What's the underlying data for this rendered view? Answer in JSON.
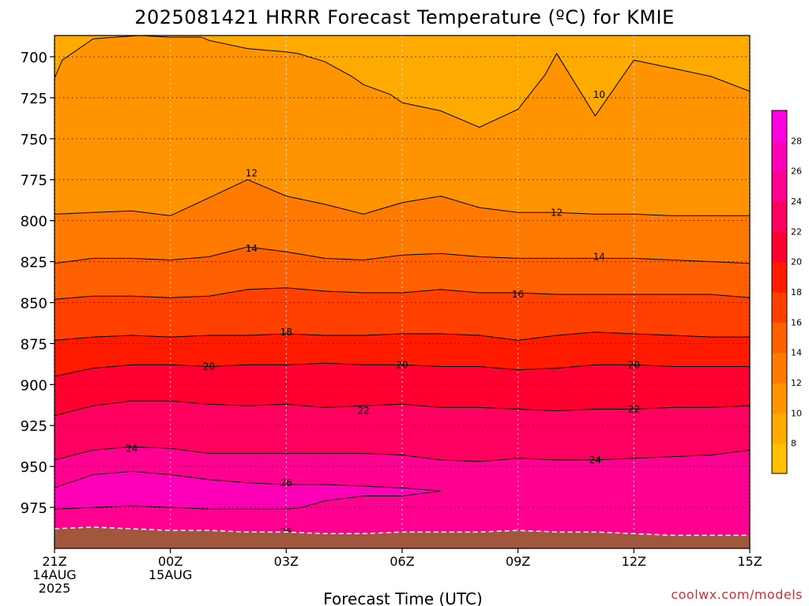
{
  "chart_data": {
    "type": "filled-contour",
    "title": "2025081421 HRRR Forecast Temperature (ºC) for KMIE",
    "xlabel": "Forecast Time (UTC)",
    "credit": "coolwx.com/models",
    "y_axis": {
      "reversed": true,
      "range": [
        1000,
        687
      ],
      "ticks": [
        700,
        725,
        750,
        775,
        800,
        825,
        850,
        875,
        900,
        925,
        950,
        975
      ]
    },
    "x_axis": {
      "range": [
        0,
        18
      ],
      "ticks": [
        {
          "x": 0,
          "lines": [
            "21Z",
            "14AUG",
            "2025"
          ]
        },
        {
          "x": 3,
          "lines": [
            "00Z",
            "15AUG"
          ]
        },
        {
          "x": 6,
          "lines": [
            "03Z"
          ]
        },
        {
          "x": 9,
          "lines": [
            "06Z"
          ]
        },
        {
          "x": 12,
          "lines": [
            "09Z"
          ]
        },
        {
          "x": 15,
          "lines": [
            "12Z"
          ]
        },
        {
          "x": 18,
          "lines": [
            "15Z"
          ]
        }
      ]
    },
    "grid": true,
    "colorbar": {
      "levels": [
        8,
        10,
        12,
        14,
        16,
        18,
        20,
        22,
        24,
        26,
        28
      ],
      "colors": [
        "#ffc000",
        "#ffaa00",
        "#ff9400",
        "#ff7a00",
        "#ff6000",
        "#ff4000",
        "#ff1a00",
        "#ff0030",
        "#ff0060",
        "#ff0090",
        "#ff00b8",
        "#ff00e0"
      ]
    },
    "contours": [
      {
        "level": 10,
        "labels": [
          {
            "x": 14.1,
            "p": 723
          }
        ],
        "x": [
          0,
          0.2,
          1,
          2.2,
          3,
          3.8,
          4,
          5,
          6,
          6.3,
          7,
          7.7,
          8,
          8.7,
          9,
          10,
          11,
          12,
          12.7,
          13,
          14,
          15,
          16,
          17,
          18
        ],
        "p": [
          713,
          702,
          689,
          687,
          688,
          688,
          690,
          695,
          697,
          698,
          703,
          712,
          717,
          723,
          728,
          733,
          743,
          732,
          711,
          698,
          736,
          702,
          707,
          712,
          721
        ]
      },
      {
        "level": 12,
        "labels": [
          {
            "x": 5.1,
            "p": 771
          },
          {
            "x": 13.0,
            "p": 795
          }
        ],
        "x": [
          0,
          1,
          2,
          3,
          4,
          5,
          6,
          7,
          8,
          9,
          10,
          11,
          12,
          13,
          14,
          15,
          16,
          17,
          18
        ],
        "p": [
          796,
          795,
          794,
          797,
          786,
          775,
          785,
          790,
          796,
          789,
          785,
          792,
          795,
          795,
          796,
          796,
          797,
          797,
          797
        ]
      },
      {
        "level": 14,
        "labels": [
          {
            "x": 5.1,
            "p": 817
          },
          {
            "x": 14.1,
            "p": 822
          }
        ],
        "x": [
          0,
          1,
          2,
          3,
          4,
          5,
          6,
          7,
          8,
          9,
          10,
          11,
          12,
          13,
          14,
          15,
          16,
          17,
          18
        ],
        "p": [
          826,
          823,
          823,
          824,
          822,
          816,
          819,
          823,
          824,
          821,
          820,
          822,
          823,
          823,
          823,
          823,
          824,
          825,
          826
        ]
      },
      {
        "level": 16,
        "labels": [
          {
            "x": 12.0,
            "p": 845
          }
        ],
        "x": [
          0,
          1,
          2,
          3,
          4,
          5,
          6,
          7,
          8,
          9,
          10,
          11,
          12,
          13,
          14,
          15,
          16,
          17,
          18
        ],
        "p": [
          848,
          846,
          846,
          847,
          846,
          842,
          841,
          843,
          844,
          844,
          842,
          844,
          844,
          845,
          845,
          845,
          845,
          845,
          847
        ]
      },
      {
        "level": 18,
        "labels": [
          {
            "x": 6.0,
            "p": 868
          }
        ],
        "x": [
          0,
          1,
          2,
          3,
          4,
          5,
          6,
          7,
          8,
          9,
          10,
          11,
          12,
          13,
          14,
          15,
          16,
          17,
          18
        ],
        "p": [
          873,
          871,
          870,
          871,
          870,
          870,
          869,
          870,
          870,
          869,
          869,
          870,
          873,
          870,
          868,
          869,
          870,
          871,
          871
        ]
      },
      {
        "level": 20,
        "labels": [
          {
            "x": 4.0,
            "p": 889
          },
          {
            "x": 9.0,
            "p": 888
          },
          {
            "x": 15.0,
            "p": 888
          }
        ],
        "x": [
          0,
          1,
          2,
          3,
          4,
          5,
          6,
          7,
          8,
          9,
          10,
          11,
          12,
          13,
          14,
          15,
          16,
          17,
          18
        ],
        "p": [
          895,
          890,
          888,
          888,
          889,
          888,
          888,
          887,
          888,
          888,
          889,
          889,
          891,
          890,
          888,
          888,
          889,
          889,
          889
        ]
      },
      {
        "level": 22,
        "labels": [
          {
            "x": 8.0,
            "p": 916
          },
          {
            "x": 15.0,
            "p": 915
          }
        ],
        "x": [
          0,
          1,
          2,
          3,
          4,
          5,
          6,
          7,
          8,
          9,
          10,
          11,
          12,
          13,
          14,
          15,
          16,
          17,
          18
        ],
        "p": [
          919,
          913,
          910,
          910,
          912,
          913,
          912,
          914,
          913,
          912,
          914,
          914,
          915,
          916,
          915,
          915,
          914,
          914,
          913
        ]
      },
      {
        "level": 24,
        "labels": [
          {
            "x": 2.0,
            "p": 939
          },
          {
            "x": 14.0,
            "p": 946
          }
        ],
        "x": [
          0,
          1,
          2,
          3,
          4,
          5,
          6,
          7,
          8,
          9,
          10,
          11,
          12,
          13,
          14,
          15,
          16,
          17,
          18
        ],
        "p": [
          946,
          940,
          938,
          939,
          942,
          942,
          942,
          942,
          942,
          943,
          946,
          947,
          945,
          946,
          946,
          945,
          944,
          943,
          940
        ]
      },
      {
        "level": 26,
        "labels": [
          {
            "x": 6.0,
            "p": 960
          },
          {
            "x": 6.0,
            "p": 990
          }
        ],
        "x": [
          0,
          1,
          2,
          3,
          4,
          5,
          6,
          7,
          8,
          9,
          10,
          9,
          8,
          7,
          6.4,
          6,
          5,
          4,
          3,
          2,
          1,
          0
        ],
        "p": [
          963,
          955,
          953,
          955,
          958,
          960,
          961,
          961,
          962,
          963,
          965,
          968,
          968,
          971,
          975,
          976,
          976,
          976,
          975,
          974,
          975,
          976
        ]
      }
    ],
    "terrain": {
      "color": "#a0573b",
      "x": [
        0,
        1,
        2,
        3,
        4,
        5,
        6,
        7,
        8,
        9,
        10,
        11,
        12,
        13,
        14,
        15,
        16,
        17,
        18
      ],
      "p": [
        988,
        987,
        988,
        989,
        989,
        990,
        990,
        991,
        991,
        990,
        990,
        990,
        989,
        990,
        990,
        991,
        992,
        992,
        992
      ]
    }
  }
}
